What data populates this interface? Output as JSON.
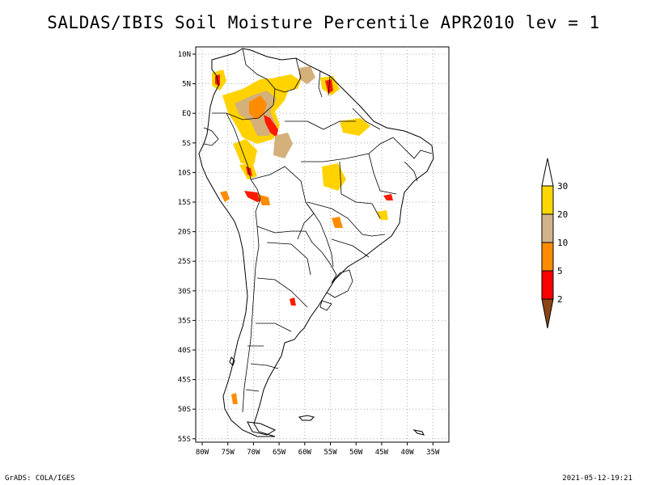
{
  "title": "SALDAS/IBIS Soil Moisture Percentile APR2010 lev = 1",
  "footer": {
    "left": "GrADS: COLA/IGES",
    "right": "2021-05-12-19:21"
  },
  "axes": {
    "lat_labels": [
      "10N",
      "5N",
      "EQ",
      "5S",
      "10S",
      "15S",
      "20S",
      "25S",
      "30S",
      "35S",
      "40S",
      "45S",
      "50S",
      "55S"
    ],
    "lon_labels": [
      "80W",
      "75W",
      "70W",
      "65W",
      "60W",
      "55W",
      "50W",
      "45W",
      "40W",
      "35W"
    ]
  },
  "colorbar": {
    "labels": [
      "2",
      "5",
      "10",
      "20",
      "30"
    ],
    "colors": {
      "below_2": "#8B4513",
      "2_5": "#FF0000",
      "5_10": "#FF8C00",
      "10_20": "#D2B48C",
      "20_30": "#FFD700",
      "above_30": "#FFFFFF"
    }
  },
  "map_colors": {
    "gold": "#FFD200",
    "tan": "#D4B07A",
    "orange": "#FF8C00",
    "red": "#FF1A00",
    "coast": "#000000",
    "grid": "#9a9a9a"
  }
}
